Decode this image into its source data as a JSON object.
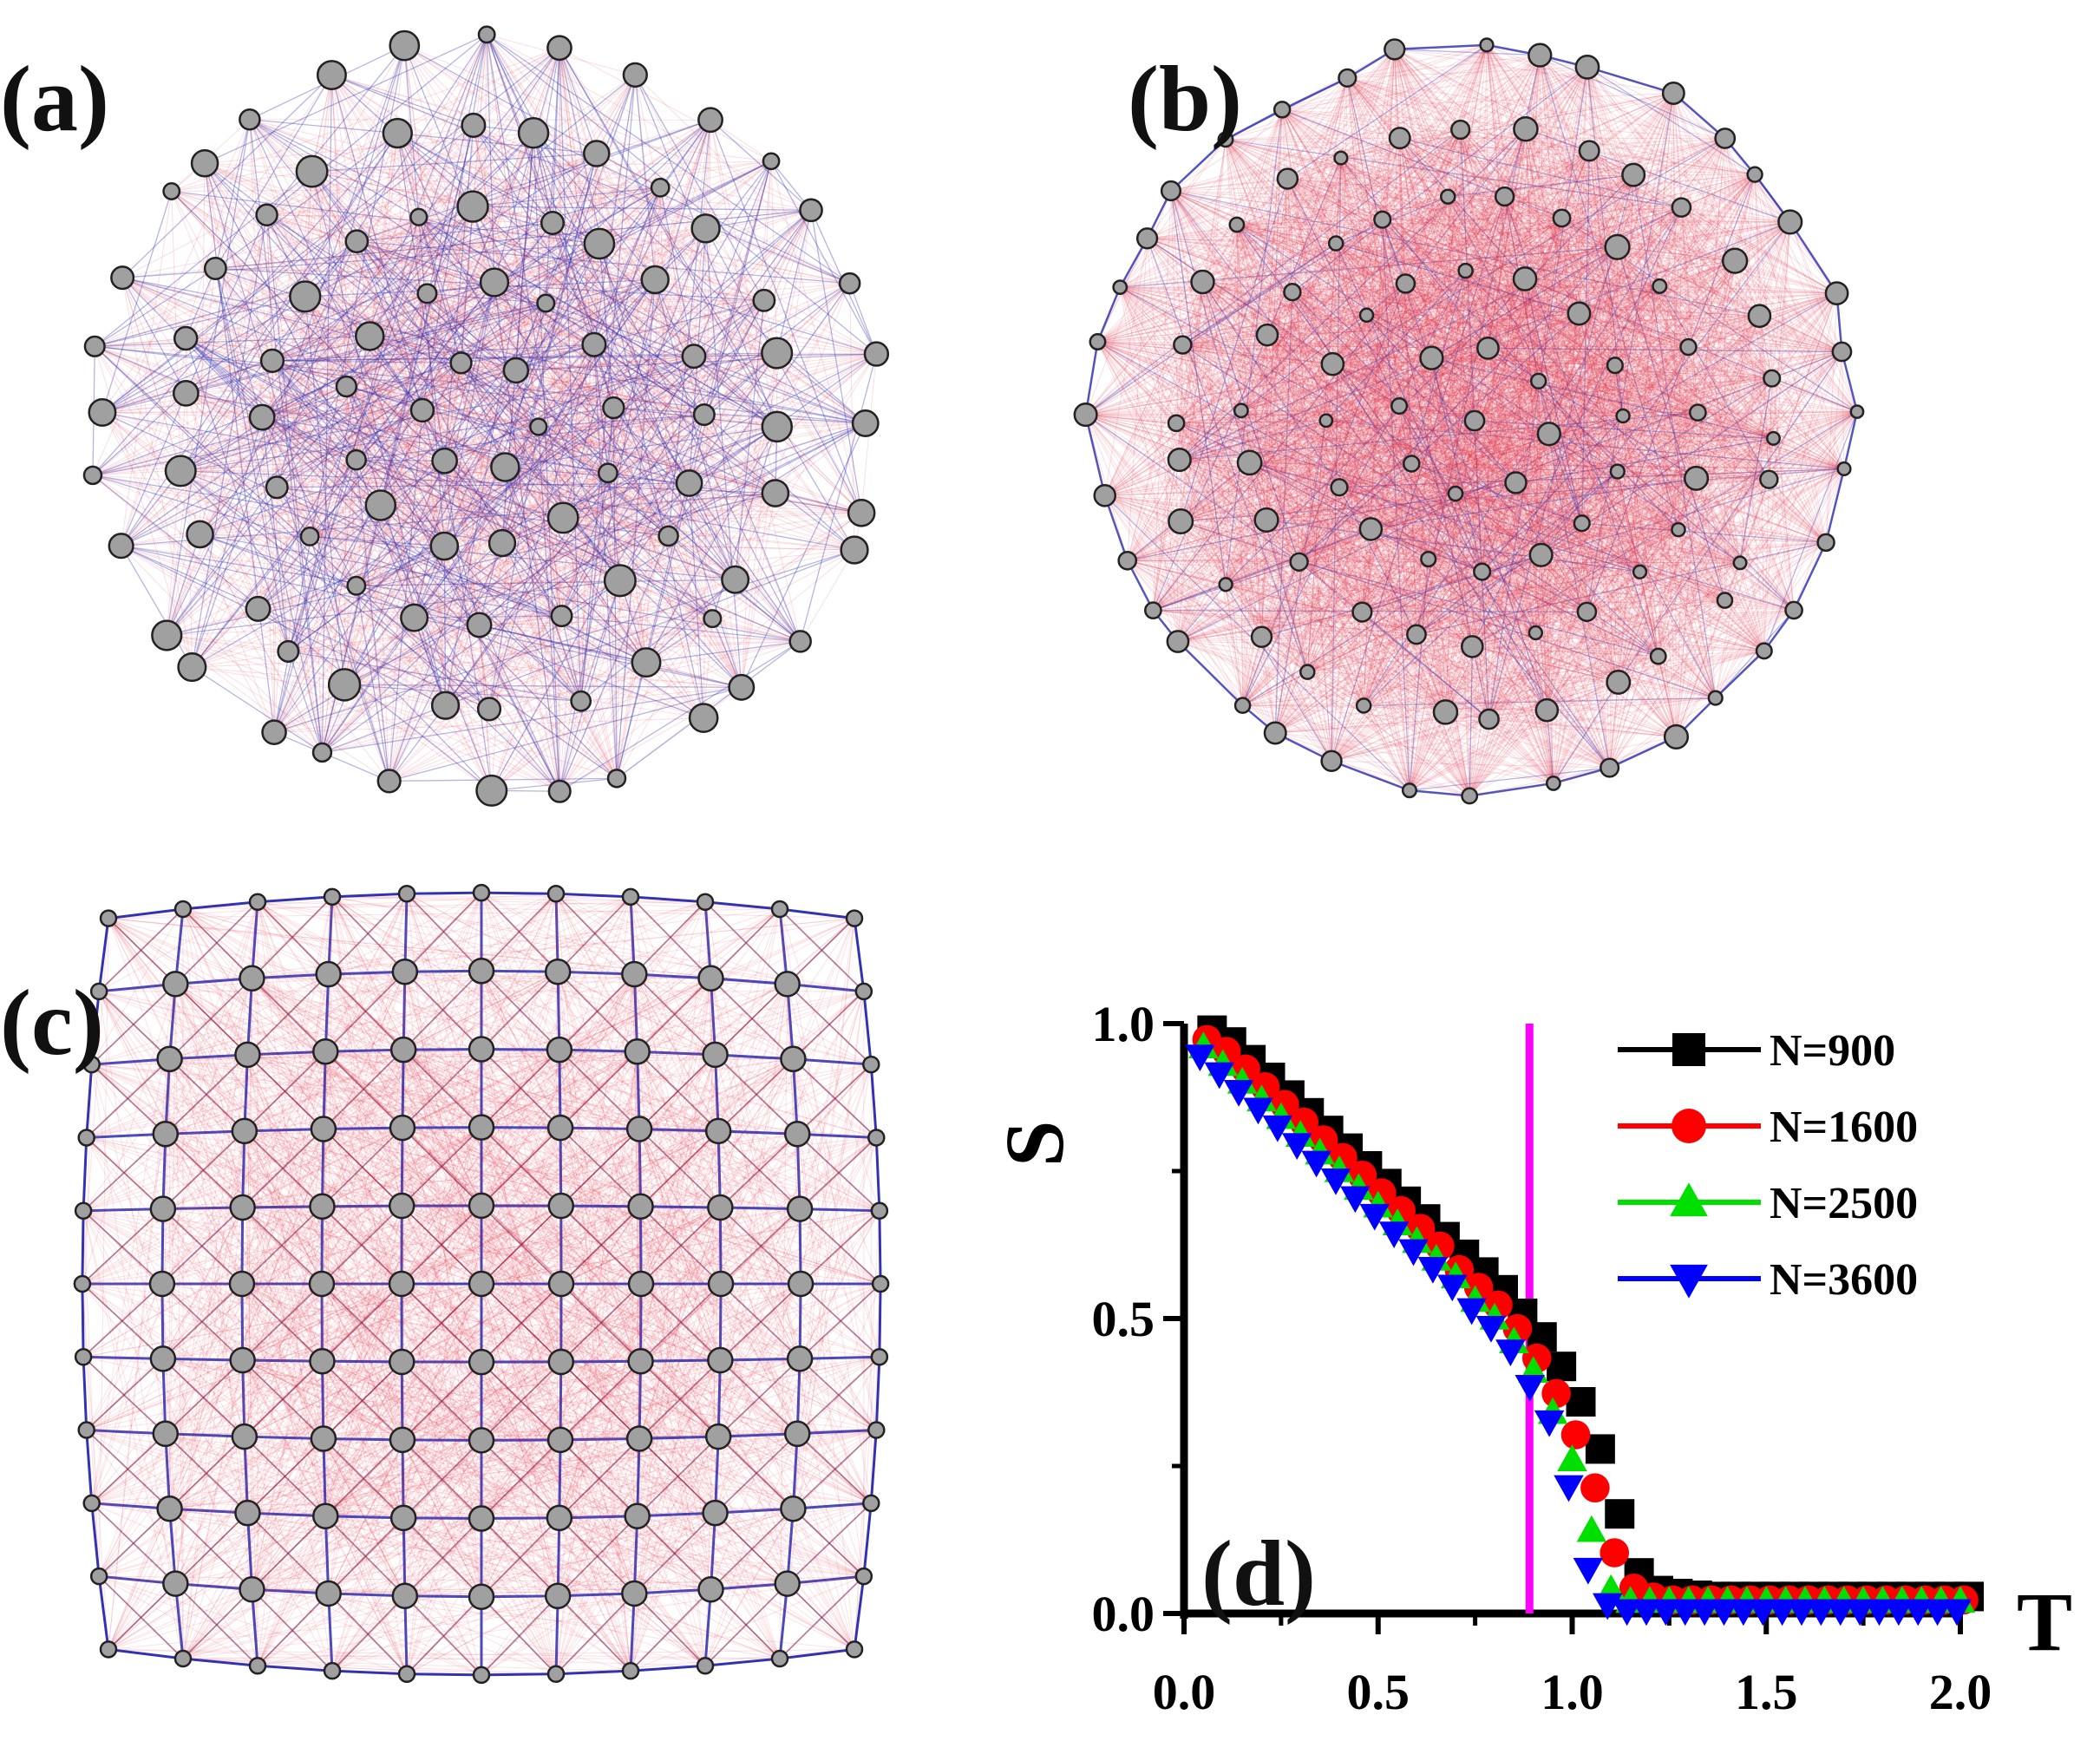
{
  "panels": {
    "a": {
      "label": "(a)"
    },
    "b": {
      "label": "(b)"
    },
    "c": {
      "label": "(c)"
    },
    "d": {
      "label": "(d)"
    }
  },
  "network_style": {
    "node_fill": "#a0a0a0",
    "node_stroke": "#222222",
    "edge_red": "#e0304a",
    "edge_blue": "#2b2bb0"
  },
  "chart_data": {
    "type": "scatter",
    "title": "",
    "xlabel": "T",
    "ylabel": "S",
    "xlim": [
      0,
      2
    ],
    "ylim": [
      0,
      1
    ],
    "xticks": [
      "0.0",
      "0.5",
      "1.0",
      "1.5",
      "2.0"
    ],
    "yticks": [
      "0.0",
      "0.5",
      "1.0"
    ],
    "legend_position": "top-right",
    "vertical_line": {
      "x": 0.89,
      "color": "#ff00ff"
    },
    "x": [
      0.05,
      0.1,
      0.15,
      0.2,
      0.25,
      0.3,
      0.35,
      0.4,
      0.45,
      0.5,
      0.55,
      0.6,
      0.65,
      0.7,
      0.75,
      0.8,
      0.85,
      0.9,
      0.95,
      1.0,
      1.05,
      1.1,
      1.15,
      1.2,
      1.25,
      1.3,
      1.35,
      1.4,
      1.45,
      1.5,
      1.55,
      1.6,
      1.65,
      1.7,
      1.75,
      1.8,
      1.85,
      1.9,
      1.95,
      2.0
    ],
    "series": [
      {
        "name": "N=900",
        "color": "#000000",
        "marker": "square",
        "values": [
          0.98,
          0.96,
          0.93,
          0.9,
          0.87,
          0.84,
          0.81,
          0.78,
          0.75,
          0.72,
          0.69,
          0.66,
          0.63,
          0.6,
          0.57,
          0.54,
          0.5,
          0.46,
          0.41,
          0.35,
          0.27,
          0.16,
          0.06,
          0.03,
          0.025,
          0.022,
          0.02,
          0.02,
          0.02,
          0.02,
          0.02,
          0.02,
          0.02,
          0.02,
          0.02,
          0.02,
          0.02,
          0.02,
          0.02,
          0.02
        ]
      },
      {
        "name": "N=1600",
        "color": "#ff0000",
        "marker": "circle",
        "values": [
          0.97,
          0.95,
          0.92,
          0.89,
          0.86,
          0.83,
          0.8,
          0.77,
          0.74,
          0.71,
          0.68,
          0.65,
          0.62,
          0.58,
          0.55,
          0.52,
          0.48,
          0.43,
          0.37,
          0.3,
          0.21,
          0.1,
          0.04,
          0.025,
          0.02,
          0.02,
          0.02,
          0.02,
          0.02,
          0.02,
          0.02,
          0.02,
          0.02,
          0.02,
          0.02,
          0.02,
          0.02,
          0.02,
          0.02,
          0.02
        ]
      },
      {
        "name": "N=2500",
        "color": "#00e000",
        "marker": "triangle-up",
        "values": [
          0.96,
          0.93,
          0.9,
          0.87,
          0.84,
          0.81,
          0.78,
          0.75,
          0.72,
          0.69,
          0.66,
          0.63,
          0.6,
          0.57,
          0.53,
          0.5,
          0.46,
          0.41,
          0.34,
          0.26,
          0.14,
          0.04,
          0.02,
          0.02,
          0.02,
          0.02,
          0.02,
          0.02,
          0.02,
          0.02,
          0.02,
          0.02,
          0.02,
          0.02,
          0.02,
          0.02,
          0.02,
          0.02,
          0.02,
          0.02
        ]
      },
      {
        "name": "N=3600",
        "color": "#0000ff",
        "marker": "triangle-down",
        "values": [
          0.95,
          0.92,
          0.89,
          0.86,
          0.83,
          0.8,
          0.77,
          0.74,
          0.71,
          0.68,
          0.65,
          0.62,
          0.59,
          0.56,
          0.52,
          0.49,
          0.45,
          0.39,
          0.33,
          0.22,
          0.08,
          0.02,
          0.01,
          0.01,
          0.01,
          0.01,
          0.01,
          0.01,
          0.01,
          0.01,
          0.01,
          0.01,
          0.01,
          0.01,
          0.01,
          0.01,
          0.01,
          0.01,
          0.01,
          0.01
        ]
      }
    ]
  }
}
